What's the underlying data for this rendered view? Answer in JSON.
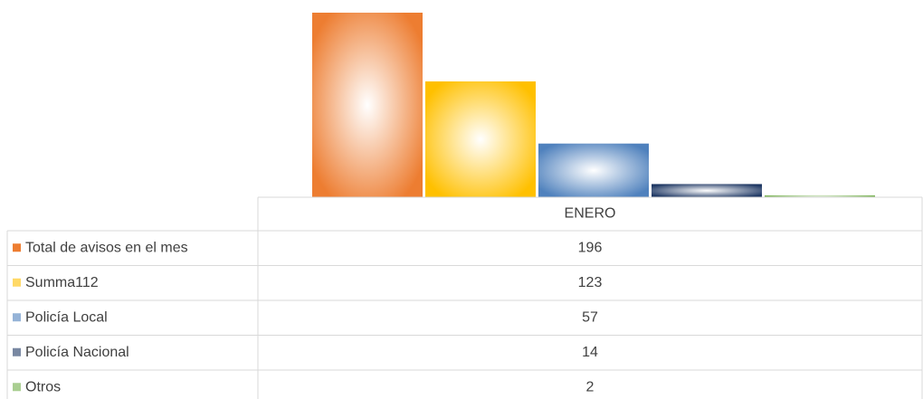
{
  "chart_data": {
    "type": "bar",
    "categories": [
      "ENERO"
    ],
    "series": [
      {
        "name": "Total de avisos en el mes",
        "color": "#ed7d31",
        "values": [
          196
        ]
      },
      {
        "name": "Summa112",
        "color": "#ffc000",
        "values": [
          123
        ]
      },
      {
        "name": "Policía Local",
        "color": "#4f81bd",
        "values": [
          57
        ]
      },
      {
        "name": "Policía Nacional",
        "color": "#1f3864",
        "values": [
          14
        ]
      },
      {
        "name": "Otros",
        "color": "#70ad47",
        "values": [
          2
        ]
      }
    ]
  }
}
